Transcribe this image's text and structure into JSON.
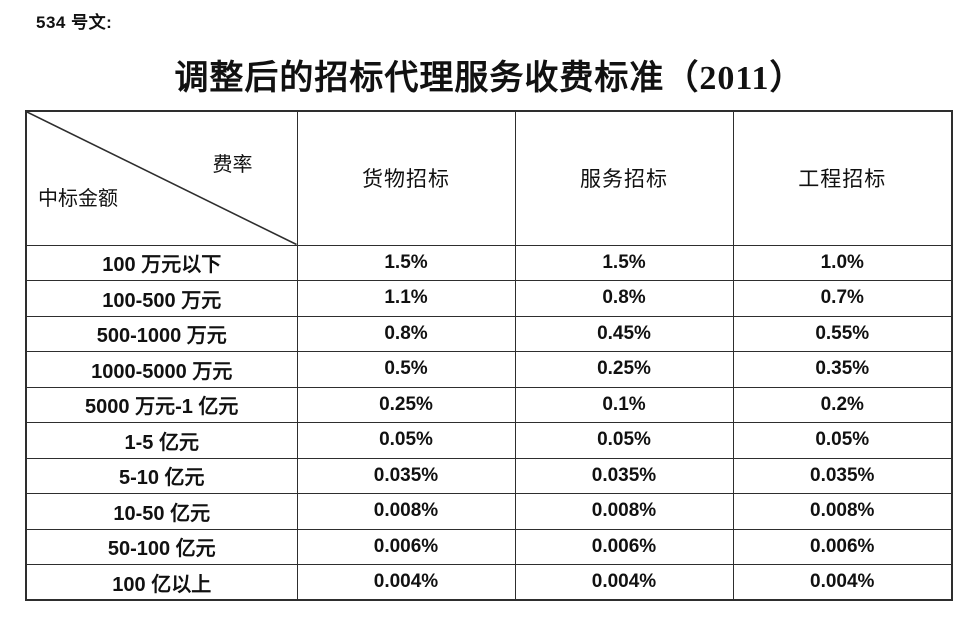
{
  "doc_label": "534 号文:",
  "title": "调整后的招标代理服务收费标准（2011）",
  "table": {
    "corner": {
      "top_right": "费率",
      "bottom_left": "中标金额"
    },
    "columns": [
      "货物招标",
      "服务招标",
      "工程招标"
    ],
    "rows": [
      {
        "amount": "100 万元以下",
        "rates": [
          "1.5%",
          "1.5%",
          "1.0%"
        ]
      },
      {
        "amount": "100-500 万元",
        "rates": [
          "1.1%",
          "0.8%",
          "0.7%"
        ]
      },
      {
        "amount": "500-1000 万元",
        "rates": [
          "0.8%",
          "0.45%",
          "0.55%"
        ]
      },
      {
        "amount": "1000-5000 万元",
        "rates": [
          "0.5%",
          "0.25%",
          "0.35%"
        ]
      },
      {
        "amount": "5000 万元-1 亿元",
        "rates": [
          "0.25%",
          "0.1%",
          "0.2%"
        ]
      },
      {
        "amount": "1-5 亿元",
        "rates": [
          "0.05%",
          "0.05%",
          "0.05%"
        ]
      },
      {
        "amount": "5-10 亿元",
        "rates": [
          "0.035%",
          "0.035%",
          "0.035%"
        ]
      },
      {
        "amount": "10-50 亿元",
        "rates": [
          "0.008%",
          "0.008%",
          "0.008%"
        ]
      },
      {
        "amount": "50-100 亿元",
        "rates": [
          "0.006%",
          "0.006%",
          "0.006%"
        ]
      },
      {
        "amount": "100 亿以上",
        "rates": [
          "0.004%",
          "0.004%",
          "0.004%"
        ]
      }
    ]
  },
  "colors": {
    "border": "#2e2e2e",
    "text": "#111111",
    "background": "#ffffff"
  }
}
